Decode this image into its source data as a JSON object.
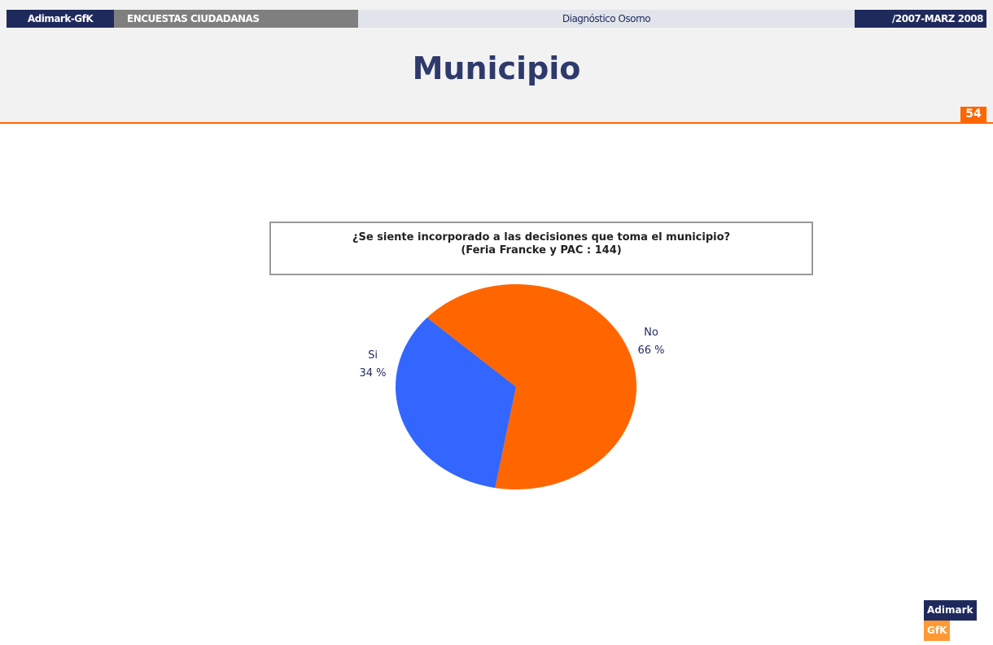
{
  "header": {
    "brand": "Adimark-GfK",
    "section": "ENCUESTAS CIUDADANAS",
    "center": "Diagnóstico Osorno",
    "period": "/2007-MARZ 2008"
  },
  "slide_title": "Municipio",
  "page_number": "54",
  "chart_data": {
    "type": "pie",
    "title": "¿Se siente incorporado a las decisiones que toma el municipio?",
    "subtitle": "(Feria Francke y PAC : 144)",
    "categories": [
      "Si",
      "No"
    ],
    "values": [
      34,
      66
    ],
    "value_labels": [
      "34 %",
      "66 %"
    ],
    "colors": [
      "#3366ff",
      "#ff6600"
    ]
  },
  "footer": {
    "logo_left": "Adimark",
    "logo_right": "GfK"
  }
}
